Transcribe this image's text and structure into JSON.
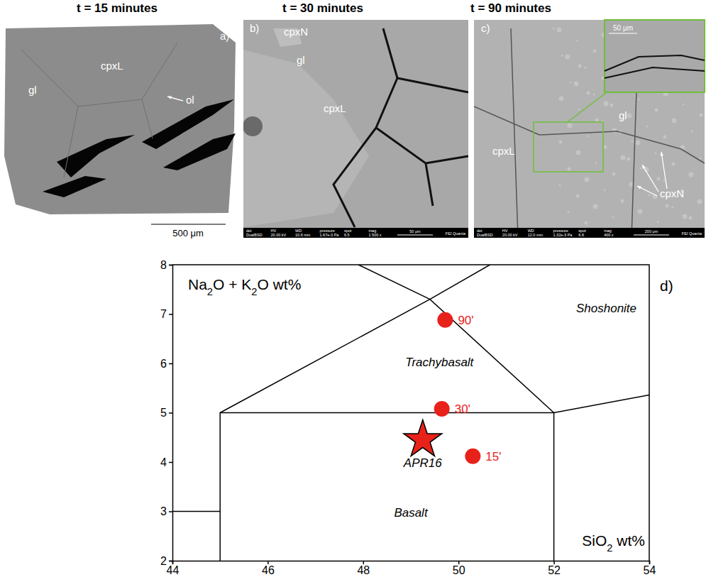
{
  "panels": [
    {
      "letter": "a)",
      "title": "t = 15 minutes",
      "labels": [
        "gl",
        "cpxL",
        "ol"
      ],
      "scale_bar": "500 μm"
    },
    {
      "letter": "b)",
      "title": "t = 30 minutes",
      "labels": [
        "cpxN",
        "gl",
        "cpxL"
      ],
      "info": [
        [
          "det",
          "DualBSD"
        ],
        [
          "HV",
          "20.00 kV"
        ],
        [
          "WD",
          "10.6 mm"
        ],
        [
          "pressure",
          "1.67e-3 Pa"
        ],
        [
          "spot",
          "6.5"
        ],
        [
          "mag",
          "1 500 x"
        ]
      ],
      "scale_bar": "50 μm",
      "brand": "FEI Quanta"
    },
    {
      "letter": "c)",
      "title": "t = 90 minutes",
      "labels": [
        "gl",
        "cpxL",
        "cpxN"
      ],
      "info": [
        [
          "det",
          "DualBSD"
        ],
        [
          "HV",
          "20.00 kV"
        ],
        [
          "WD",
          "12.0 mm"
        ],
        [
          "pressure",
          "1.32e-3 Pa"
        ],
        [
          "spot",
          "6.6"
        ],
        [
          "mag",
          "400 x"
        ]
      ],
      "scale_bar": "200 μm",
      "brand": "FEI Quanta",
      "inset_scale_bar": "50 μm"
    }
  ],
  "chart_data": {
    "type": "scatter",
    "letter": "d)",
    "xlabel": "SiO2 wt%",
    "ylabel": "Na2O + K2O wt%",
    "xlim": [
      44,
      54
    ],
    "ylim": [
      2,
      8
    ],
    "xticks": [
      44,
      46,
      48,
      50,
      52,
      54
    ],
    "yticks": [
      2,
      3,
      4,
      5,
      6,
      7,
      8
    ],
    "series": [
      {
        "color": "#e8221b",
        "marker": "circle",
        "x": [
          50.3,
          49.65,
          49.72
        ],
        "values": [
          4.12,
          5.08,
          6.88
        ],
        "labels": [
          "15'",
          "30'",
          "90'"
        ]
      },
      {
        "color": "#e8221b",
        "marker": "star",
        "x": [
          49.25
        ],
        "values": [
          4.45
        ],
        "labels": [
          "APR16"
        ]
      }
    ],
    "fields": [
      {
        "label": "Basalt",
        "x": 49.0,
        "y": 2.95
      },
      {
        "label": "Trachybasalt",
        "x": 49.6,
        "y": 6.0
      },
      {
        "label": "Shoshonite",
        "x": 53.1,
        "y": 7.1
      }
    ],
    "boundaries": [
      [
        [
          44,
          3
        ],
        [
          45,
          3
        ]
      ],
      [
        [
          45,
          2
        ],
        [
          45,
          5
        ],
        [
          52,
          5
        ],
        [
          52,
          2
        ]
      ],
      [
        [
          45,
          5
        ],
        [
          49.4,
          7.3
        ],
        [
          52,
          5
        ]
      ],
      [
        [
          49.4,
          7.3
        ],
        [
          47.9,
          8
        ]
      ],
      [
        [
          49.4,
          7.3
        ],
        [
          50.66,
          8
        ]
      ],
      [
        [
          52,
          5
        ],
        [
          54,
          5.36
        ]
      ]
    ]
  }
}
